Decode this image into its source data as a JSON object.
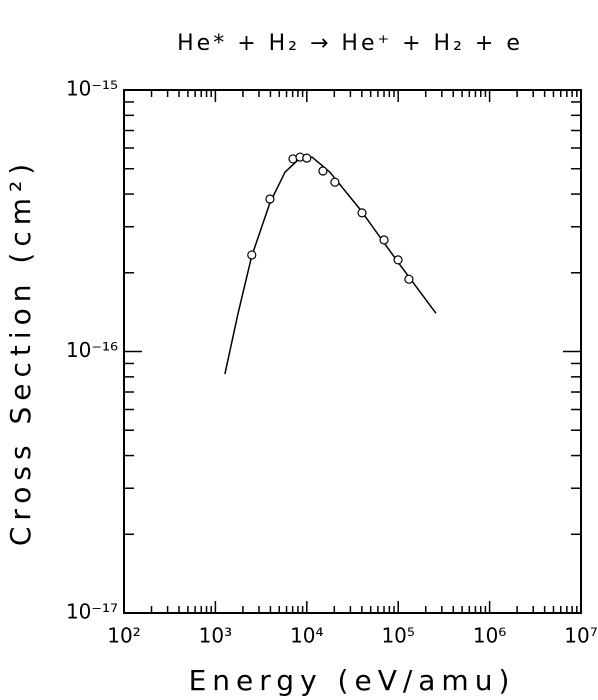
{
  "chart_data": {
    "type": "scatter",
    "title": "He* + H₂ → He⁺ + H₂ + e",
    "x_label": "Energy (eV/amu)",
    "y_label": "Cross Section (cm²)",
    "xscale": "log",
    "yscale": "log",
    "xlim": [
      100,
      10000000
    ],
    "ylim": [
      1e-17,
      1e-15
    ],
    "xticks": [
      {
        "value": 100,
        "label": "10²"
      },
      {
        "value": 1000,
        "label": "10³"
      },
      {
        "value": 10000,
        "label": "10⁴"
      },
      {
        "value": 100000,
        "label": "10⁵"
      },
      {
        "value": 1000000,
        "label": "10⁶"
      },
      {
        "value": 10000000,
        "label": "10⁷"
      }
    ],
    "yticks": [
      {
        "value": 1e-17,
        "label": "10⁻¹⁷"
      },
      {
        "value": 1e-16,
        "label": "10⁻¹⁶"
      },
      {
        "value": 1e-15,
        "label": "10⁻¹⁵"
      }
    ],
    "minor_ticks": true,
    "color": "#000000",
    "points": {
      "x": [
        2500,
        3950,
        7060,
        8430,
        10000,
        15000,
        20300,
        40200,
        70000,
        99600,
        131000
      ],
      "y": [
        2.34e-16,
        3.83e-16,
        5.45e-16,
        5.54e-16,
        5.49e-16,
        4.9e-16,
        4.44e-16,
        3.39e-16,
        2.67e-16,
        2.24e-16,
        1.89e-16
      ]
    },
    "fit": {
      "x": [
        1270,
        1770,
        2500,
        3950,
        5770,
        8430,
        11400,
        17900,
        38200,
        105000,
        259000
      ],
      "y": [
        8.2e-17,
        1.4e-16,
        2.32e-16,
        3.7e-16,
        4.85e-16,
        5.49e-16,
        5.54e-16,
        4.85e-16,
        3.5e-16,
        2.14e-16,
        1.4e-16
      ]
    }
  }
}
